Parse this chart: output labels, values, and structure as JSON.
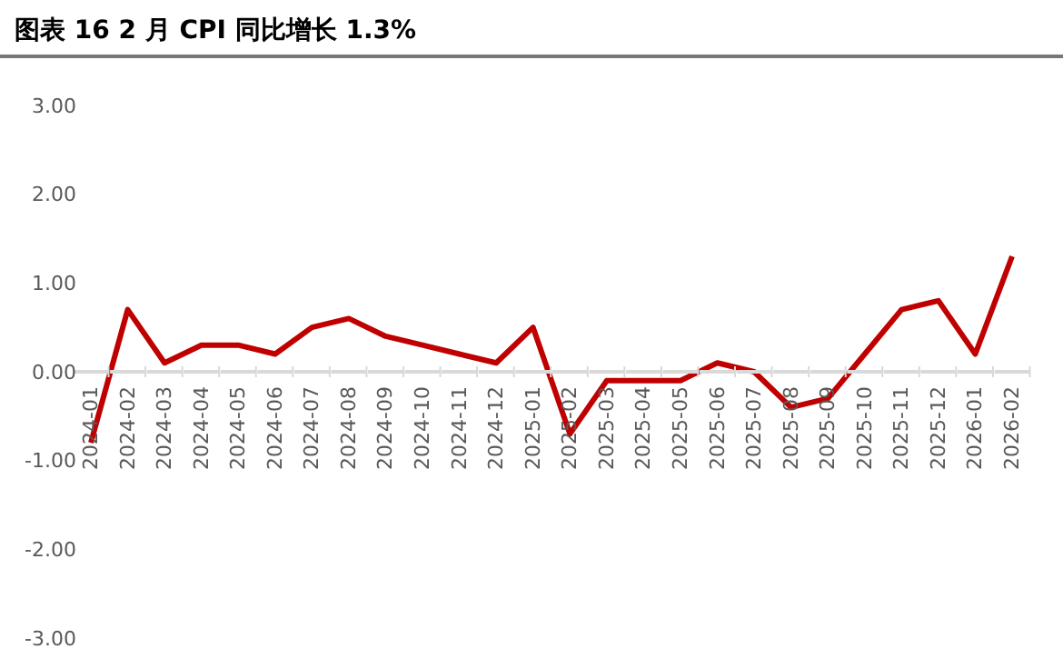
{
  "chart_data": {
    "type": "line",
    "title": "图表 16 2 月 CPI 同比增长 1.3%",
    "categories": [
      "2024-01",
      "2024-02",
      "2024-03",
      "2024-04",
      "2024-05",
      "2024-06",
      "2024-07",
      "2024-08",
      "2024-09",
      "2024-10",
      "2024-11",
      "2024-12",
      "2025-01",
      "2025-02",
      "2025-03",
      "2025-04",
      "2025-05",
      "2025-06",
      "2025-07",
      "2025-08",
      "2025-09",
      "2025-10",
      "2025-11",
      "2025-12",
      "2026-01",
      "2026-02"
    ],
    "series": [
      {
        "color": "#c00000",
        "values": [
          -0.8,
          0.7,
          0.1,
          0.3,
          0.3,
          0.2,
          0.5,
          0.6,
          0.4,
          0.3,
          0.2,
          0.1,
          0.5,
          -0.7,
          -0.1,
          -0.1,
          -0.1,
          0.1,
          0.0,
          -0.4,
          -0.3,
          0.2,
          0.7,
          0.8,
          0.2,
          1.3
        ]
      }
    ],
    "ylim": [
      -3,
      3
    ],
    "yticks": [
      {
        "value": 3,
        "label": "3.00"
      },
      {
        "value": 2,
        "label": "2.00"
      },
      {
        "value": 1,
        "label": "1.00"
      },
      {
        "value": 0,
        "label": "0.00"
      },
      {
        "value": -1,
        "label": "-1.00"
      },
      {
        "value": -2,
        "label": "-2.00"
      },
      {
        "value": -3,
        "label": "-3.00"
      }
    ],
    "grid": false,
    "legend": false,
    "marker": "none",
    "line_style": "solid"
  }
}
